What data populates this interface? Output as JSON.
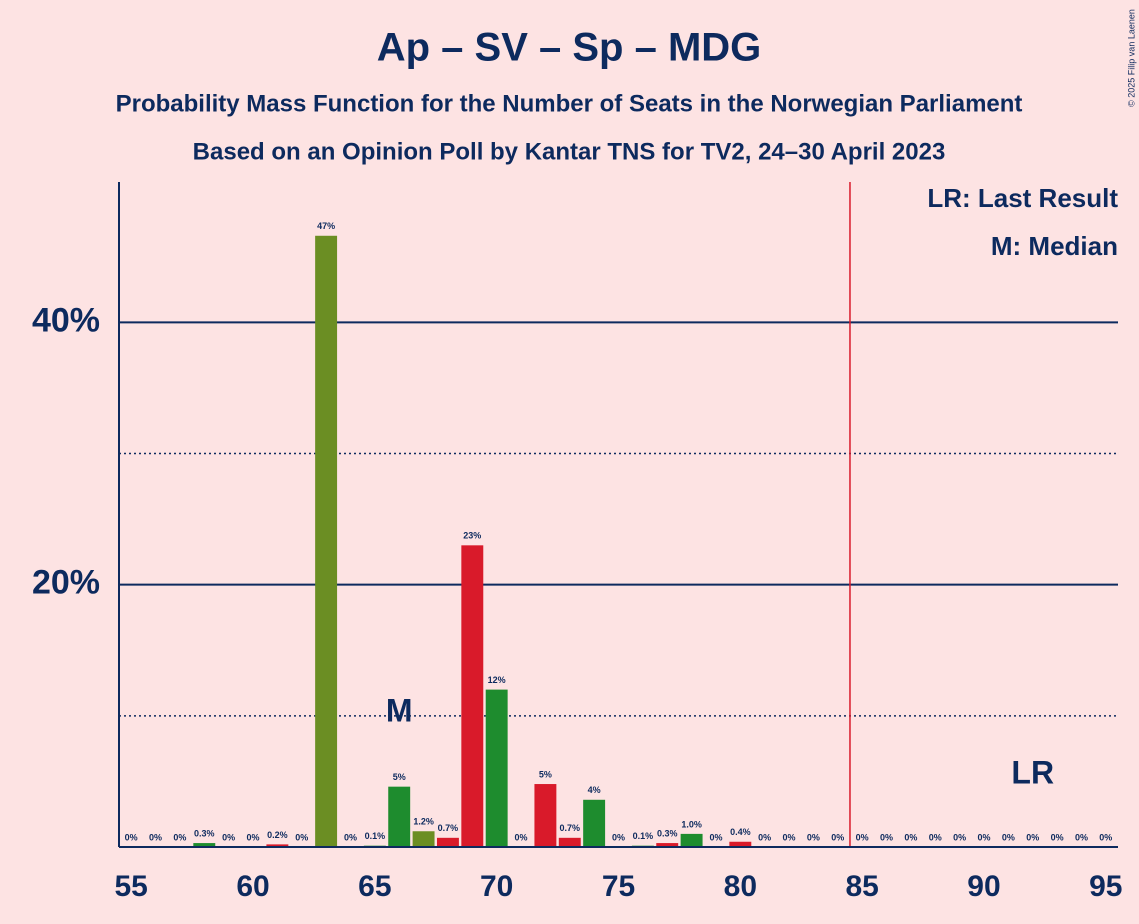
{
  "chart_data": {
    "type": "bar",
    "title": "Ap – SV – Sp – MDG",
    "subtitle": [
      "Probability Mass Function for the Number of Seats in the Norwegian Parliament",
      "Based on an Opinion Poll by Kantar TNS for TV2, 24–30 April 2023"
    ],
    "copyright": "© 2025 Filip van Laenen",
    "x": [
      55,
      56,
      57,
      58,
      59,
      60,
      61,
      62,
      63,
      64,
      65,
      66,
      67,
      68,
      69,
      70,
      71,
      72,
      73,
      74,
      75,
      76,
      77,
      78,
      79,
      80,
      81,
      82,
      83,
      84,
      85,
      86,
      87,
      88,
      89,
      90,
      91,
      92,
      93,
      94,
      95
    ],
    "values": [
      0,
      0,
      0,
      0.3,
      0,
      0,
      0.2,
      0,
      46.6,
      0,
      0.1,
      4.6,
      1.2,
      0.7,
      23,
      12,
      0,
      4.8,
      0.7,
      3.6,
      0,
      0.1,
      0.3,
      1.0,
      0,
      0.4,
      0,
      0,
      0,
      0,
      0,
      0,
      0,
      0,
      0,
      0,
      0,
      0,
      0,
      0,
      0
    ],
    "value_labels": [
      "0%",
      "0%",
      "0%",
      "0.3%",
      "0%",
      "0%",
      "0.2%",
      "0%",
      "47%",
      "0%",
      "0.1%",
      "5%",
      "1.2%",
      "0.7%",
      "23%",
      "12%",
      "0%",
      "5%",
      "0.7%",
      "4%",
      "0%",
      "0.1%",
      "0.3%",
      "1.0%",
      "0%",
      "0.4%",
      "0%",
      "0%",
      "0%",
      "0%",
      "0%",
      "0%",
      "0%",
      "0%",
      "0%",
      "0%",
      "0%",
      "0%",
      "0%",
      "0%",
      "0%"
    ],
    "colors": [
      "#1e8c2e",
      "#1e8c2e",
      "#1e8c2e",
      "#1e8c2e",
      "#1e8c2e",
      "#1e8c2e",
      "#d91a2a",
      "#1e8c2e",
      "#6b8e23",
      "#1e8c2e",
      "#1e8c2e",
      "#1e8c2e",
      "#6b8e23",
      "#d91a2a",
      "#d91a2a",
      "#1e8c2e",
      "#1e8c2e",
      "#d91a2a",
      "#d91a2a",
      "#1e8c2e",
      "#1e8c2e",
      "#1e8c2e",
      "#d91a2a",
      "#1e8c2e",
      "#1e8c2e",
      "#d91a2a",
      "#1e8c2e",
      "#1e8c2e",
      "#1e8c2e",
      "#1e8c2e",
      "#1e8c2e",
      "#1e8c2e",
      "#1e8c2e",
      "#1e8c2e",
      "#1e8c2e",
      "#1e8c2e",
      "#1e8c2e",
      "#1e8c2e",
      "#1e8c2e",
      "#1e8c2e",
      "#1e8c2e"
    ],
    "xlim": [
      54.5,
      95.5
    ],
    "xticks": [
      55,
      60,
      65,
      70,
      75,
      80,
      85,
      90,
      95
    ],
    "ylim": [
      0,
      50.7
    ],
    "yticks": [
      {
        "value": 20,
        "label": "20%"
      },
      {
        "value": 40,
        "label": "40%"
      }
    ],
    "minor_yticks": [
      10,
      30
    ],
    "majority_line": 84.5,
    "median": {
      "x": 66,
      "label": "M"
    },
    "last_result": {
      "x": 92,
      "label": "LR"
    },
    "legend": [
      "LR: Last Result",
      "M: Median"
    ]
  }
}
